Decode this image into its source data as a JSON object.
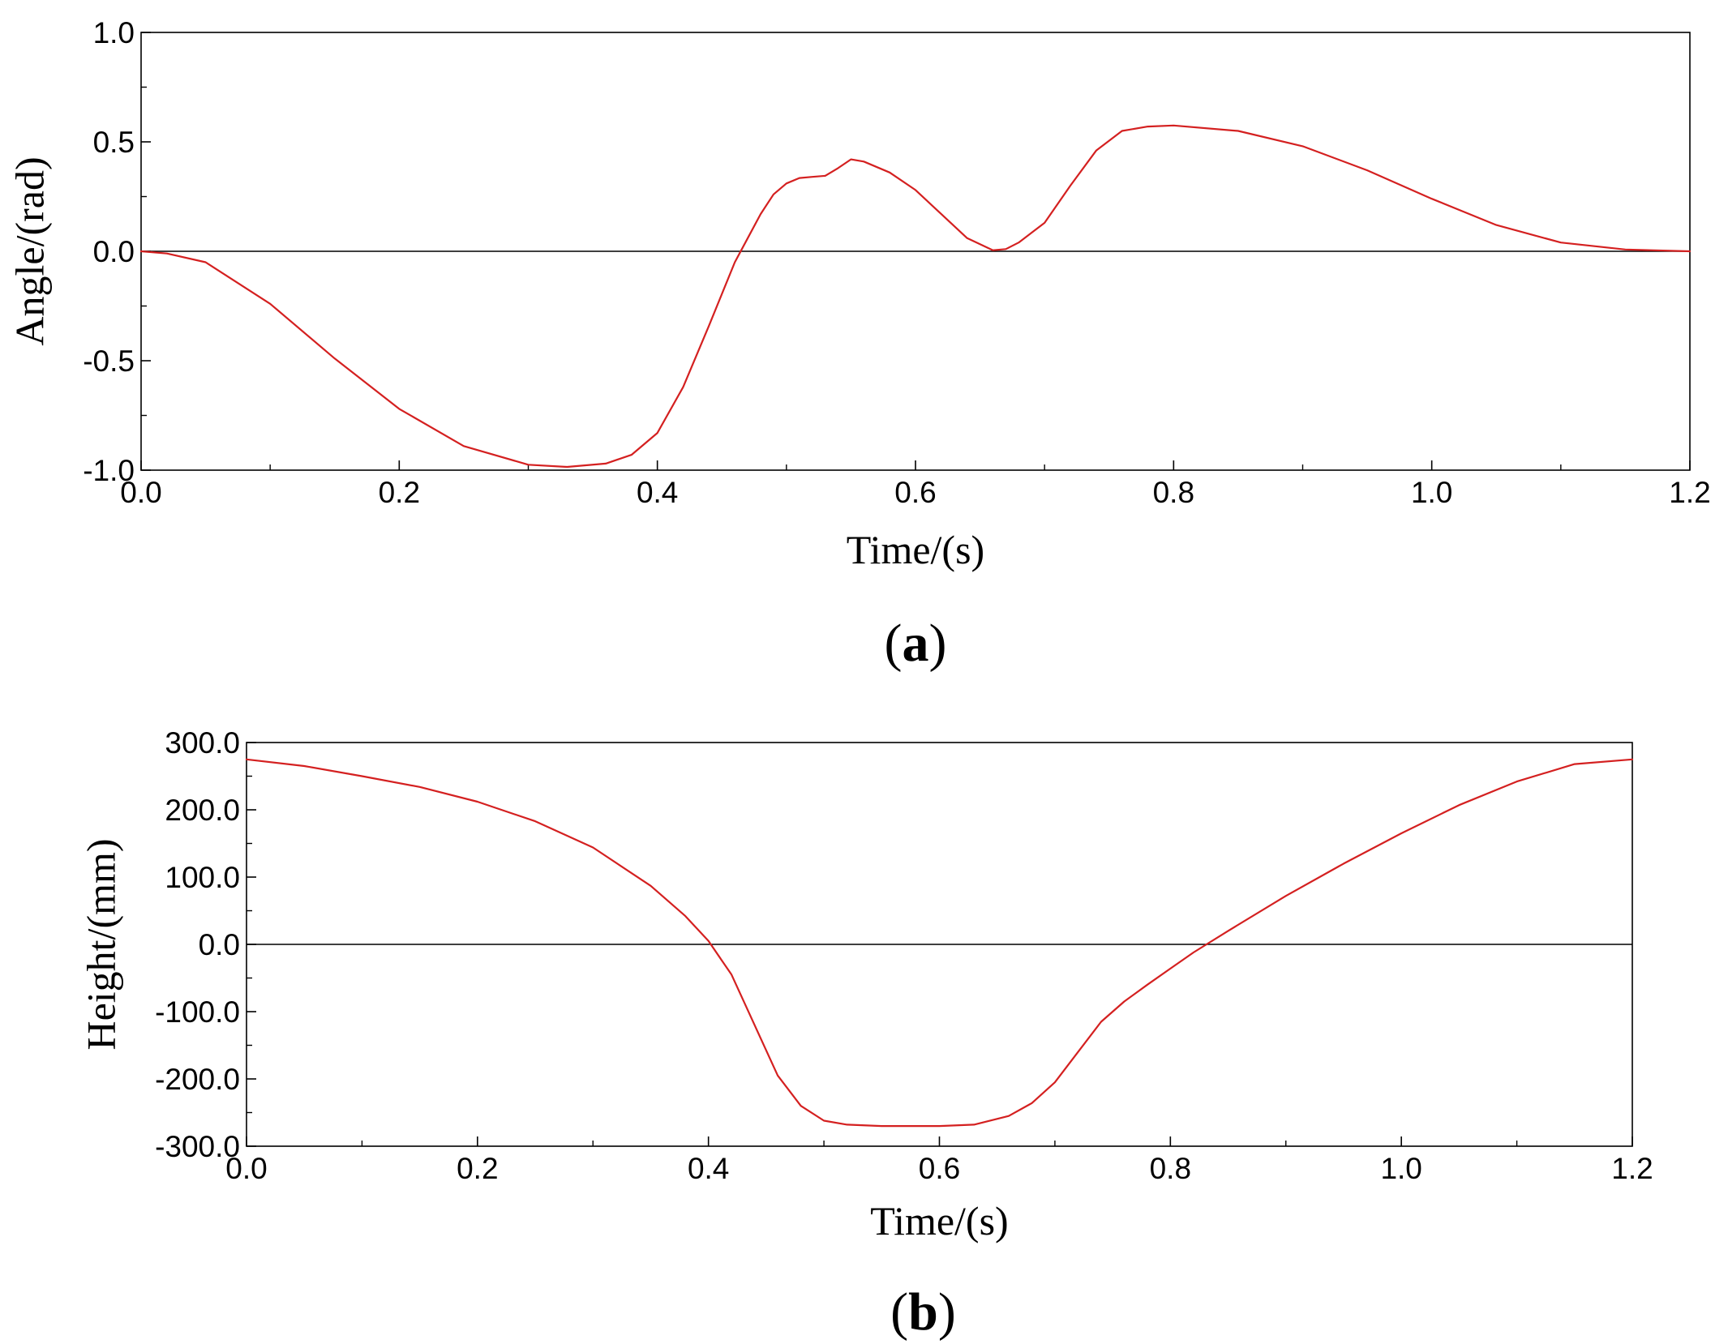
{
  "chart_data": [
    {
      "type": "line",
      "panel_label": "a",
      "xlabel": "Time/(s)",
      "ylabel": "Angle/(rad)",
      "xlim": [
        0.0,
        1.2
      ],
      "ylim": [
        -1.0,
        1.0
      ],
      "x_ticks": [
        "0.0",
        "0.2",
        "0.4",
        "0.6",
        "0.8",
        "1.0",
        "1.2"
      ],
      "y_ticks": [
        "1.0",
        "0.5",
        "0.0",
        "-0.5",
        "-1.0"
      ],
      "grid": false,
      "zero_line": true,
      "line_color": "#d42020",
      "series": [
        {
          "x": [
            0.0,
            0.02,
            0.05,
            0.1,
            0.15,
            0.2,
            0.25,
            0.3,
            0.33,
            0.36,
            0.38,
            0.4,
            0.42,
            0.44,
            0.46,
            0.47,
            0.48,
            0.49,
            0.5,
            0.51,
            0.52,
            0.53,
            0.54,
            0.55,
            0.56,
            0.58,
            0.6,
            0.62,
            0.64,
            0.66,
            0.67,
            0.68,
            0.7,
            0.72,
            0.74,
            0.76,
            0.78,
            0.8,
            0.85,
            0.9,
            0.95,
            1.0,
            1.05,
            1.1,
            1.15,
            1.2
          ],
          "y": [
            0.0,
            -0.01,
            -0.05,
            -0.24,
            -0.49,
            -0.72,
            -0.89,
            -0.975,
            -0.985,
            -0.97,
            -0.93,
            -0.83,
            -0.62,
            -0.34,
            -0.05,
            0.06,
            0.17,
            0.26,
            0.31,
            0.335,
            0.34,
            0.345,
            0.38,
            0.42,
            0.41,
            0.36,
            0.28,
            0.17,
            0.06,
            0.005,
            0.01,
            0.04,
            0.13,
            0.3,
            0.46,
            0.55,
            0.57,
            0.575,
            0.55,
            0.48,
            0.37,
            0.24,
            0.12,
            0.04,
            0.008,
            0.0
          ]
        }
      ]
    },
    {
      "type": "line",
      "panel_label": "b",
      "xlabel": "Time/(s)",
      "ylabel": "Height/(mm)",
      "xlim": [
        0.0,
        1.2
      ],
      "ylim": [
        -300.0,
        300.0
      ],
      "x_ticks": [
        "0.0",
        "0.2",
        "0.4",
        "0.6",
        "0.8",
        "1.0",
        "1.2"
      ],
      "y_ticks": [
        "300.0",
        "200.0",
        "100.0",
        "0.0",
        "-100.0",
        "-200.0",
        "-300.0"
      ],
      "grid": false,
      "zero_line": true,
      "line_color": "#d42020",
      "series": [
        {
          "x": [
            0.0,
            0.05,
            0.1,
            0.15,
            0.2,
            0.25,
            0.3,
            0.35,
            0.38,
            0.4,
            0.42,
            0.44,
            0.46,
            0.48,
            0.5,
            0.52,
            0.55,
            0.6,
            0.63,
            0.66,
            0.68,
            0.7,
            0.72,
            0.74,
            0.76,
            0.78,
            0.8,
            0.82,
            0.85,
            0.9,
            0.95,
            1.0,
            1.05,
            1.1,
            1.15,
            1.2
          ],
          "y": [
            275,
            265,
            250,
            234,
            212,
            183,
            144,
            87,
            42,
            5,
            -45,
            -120,
            -195,
            -240,
            -262,
            -268,
            -270,
            -270,
            -268,
            -255,
            -236,
            -205,
            -160,
            -115,
            -85,
            -60,
            -36,
            -12,
            20,
            72,
            120,
            165,
            207,
            242,
            268,
            275
          ]
        }
      ]
    }
  ]
}
